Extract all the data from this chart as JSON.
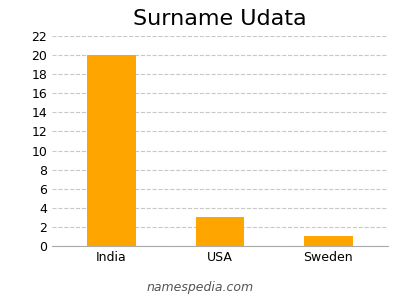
{
  "title": "Surname Udata",
  "categories": [
    "India",
    "USA",
    "Sweden"
  ],
  "values": [
    20,
    3,
    1
  ],
  "bar_color": "#FFA500",
  "ylim": [
    0,
    22
  ],
  "yticks": [
    0,
    2,
    4,
    6,
    8,
    10,
    12,
    14,
    16,
    18,
    20,
    22
  ],
  "grid_color": "#c8c8c8",
  "background_color": "#ffffff",
  "footer_text": "namespedia.com",
  "title_fontsize": 16,
  "tick_fontsize": 9,
  "footer_fontsize": 9,
  "bar_width": 0.45
}
